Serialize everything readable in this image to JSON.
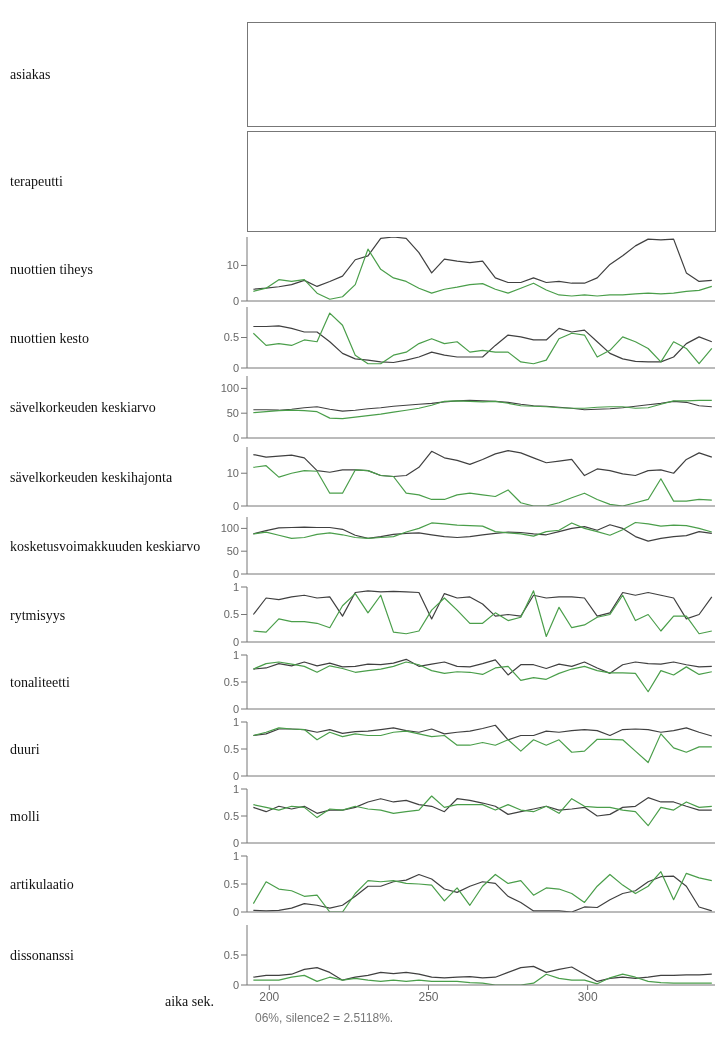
{
  "chart_data": [
    {
      "type": "other",
      "ylabel": "asiakas"
    },
    {
      "type": "other",
      "ylabel": "terapeutti"
    },
    {
      "type": "line",
      "ylabel": "nuottien tiheys",
      "xlim": [
        193,
        340
      ],
      "ylim": [
        0,
        18
      ],
      "yticks": [
        0,
        10
      ],
      "tick_labels": "y",
      "marker": "none",
      "x": [
        195,
        199,
        203,
        207,
        211,
        215,
        219,
        223,
        227,
        231,
        235,
        239,
        243,
        247,
        251,
        255,
        259,
        263,
        267,
        271,
        275,
        279,
        283,
        287,
        291,
        295,
        299,
        303,
        307,
        311,
        315,
        319,
        323,
        327,
        331,
        335,
        339
      ],
      "series": [
        {
          "color": "#404040",
          "values": [
            3.3,
            3.6,
            4,
            4.6,
            5.8,
            4.1,
            5.5,
            7,
            11.6,
            12.7,
            17.6,
            18,
            17.6,
            13.6,
            7.9,
            11.8,
            11.2,
            10.8,
            11.2,
            6.5,
            5.2,
            5.2,
            6.5,
            5.2,
            5.5,
            5,
            5,
            6.5,
            10.3,
            12.7,
            15.5,
            17.4,
            17.2,
            17.4,
            7.9,
            5.5,
            5.8
          ]
        },
        {
          "color": "#4a9e4a",
          "values": [
            2.7,
            3.6,
            6,
            5.5,
            6,
            2.2,
            0.5,
            1.2,
            4.6,
            14.6,
            8.9,
            6.5,
            5.5,
            3.6,
            2.2,
            3.3,
            3.9,
            4.6,
            4.9,
            3.3,
            2.2,
            3.6,
            5,
            3.1,
            1.7,
            1.4,
            1.7,
            1.4,
            1.7,
            1.7,
            2,
            2.2,
            2,
            2.2,
            2.7,
            3,
            4.1
          ]
        }
      ]
    },
    {
      "type": "line",
      "ylabel": "nuottien kesto",
      "xlim": [
        193,
        340
      ],
      "ylim": [
        0,
        1
      ],
      "yticks": [
        0,
        0.5
      ],
      "tick_labels": "y",
      "marker": "none",
      "x": [
        195,
        199,
        203,
        207,
        211,
        215,
        219,
        223,
        227,
        231,
        235,
        239,
        243,
        247,
        251,
        255,
        259,
        263,
        267,
        271,
        275,
        279,
        283,
        287,
        291,
        295,
        299,
        303,
        307,
        311,
        315,
        319,
        323,
        327,
        331,
        335,
        339
      ],
      "series": [
        {
          "color": "#404040",
          "values": [
            0.68,
            0.68,
            0.69,
            0.65,
            0.59,
            0.59,
            0.43,
            0.24,
            0.15,
            0.13,
            0.1,
            0.09,
            0.13,
            0.18,
            0.26,
            0.21,
            0.18,
            0.18,
            0.18,
            0.37,
            0.54,
            0.51,
            0.46,
            0.46,
            0.65,
            0.59,
            0.62,
            0.43,
            0.24,
            0.15,
            0.11,
            0.1,
            0.1,
            0.18,
            0.4,
            0.51,
            0.43
          ]
        },
        {
          "color": "#4a9e4a",
          "values": [
            0.57,
            0.37,
            0.4,
            0.37,
            0.46,
            0.43,
            0.9,
            0.7,
            0.21,
            0.07,
            0.07,
            0.21,
            0.26,
            0.4,
            0.48,
            0.4,
            0.43,
            0.26,
            0.29,
            0.26,
            0.26,
            0.1,
            0.07,
            0.13,
            0.48,
            0.57,
            0.54,
            0.18,
            0.29,
            0.51,
            0.43,
            0.32,
            0.1,
            0.43,
            0.32,
            0.07,
            0.32
          ]
        }
      ]
    },
    {
      "type": "line",
      "ylabel": "sävelkorkeuden keskiarvo",
      "xlim": [
        193,
        340
      ],
      "ylim": [
        0,
        125
      ],
      "yticks": [
        0,
        50,
        100
      ],
      "tick_labels": "y",
      "marker": "none",
      "x": [
        195,
        199,
        203,
        207,
        211,
        215,
        219,
        223,
        227,
        231,
        235,
        239,
        243,
        247,
        251,
        255,
        259,
        263,
        267,
        271,
        275,
        279,
        283,
        287,
        291,
        295,
        299,
        303,
        307,
        311,
        315,
        319,
        323,
        327,
        331,
        335,
        339
      ],
      "series": [
        {
          "color": "#404040",
          "values": [
            57,
            57,
            56,
            58,
            61,
            63,
            58,
            54,
            56,
            59,
            61,
            64,
            66,
            68,
            70,
            73,
            75,
            76,
            75,
            74,
            72,
            68,
            65,
            64,
            62,
            60,
            57,
            58,
            59,
            61,
            64,
            67,
            70,
            74,
            72,
            65,
            63
          ]
        },
        {
          "color": "#4a9e4a",
          "values": [
            51,
            53,
            55,
            56,
            55,
            53,
            40,
            39,
            42,
            45,
            48,
            52,
            56,
            60,
            66,
            74,
            75,
            74,
            73,
            74,
            70,
            65,
            64,
            63,
            61,
            60,
            60,
            62,
            63,
            63,
            60,
            61,
            68,
            75,
            75,
            76,
            76
          ]
        }
      ]
    },
    {
      "type": "line",
      "ylabel": "sävelkorkeuden keskihajonta",
      "xlim": [
        193,
        340
      ],
      "ylim": [
        0,
        18
      ],
      "yticks": [
        0,
        10
      ],
      "tick_labels": "y",
      "marker": "none",
      "x": [
        195,
        199,
        203,
        207,
        211,
        215,
        219,
        223,
        227,
        231,
        235,
        239,
        243,
        247,
        251,
        255,
        259,
        263,
        267,
        271,
        275,
        279,
        283,
        287,
        291,
        295,
        299,
        303,
        307,
        311,
        315,
        319,
        323,
        327,
        331,
        335,
        339
      ],
      "series": [
        {
          "color": "#404040",
          "values": [
            15.7,
            14.9,
            15.2,
            15.5,
            14.7,
            10.8,
            10.3,
            11,
            11,
            10.8,
            9.3,
            9,
            9.3,
            11.8,
            16.7,
            14.7,
            13.9,
            12.7,
            14.2,
            15.9,
            16.9,
            16.2,
            14.7,
            13.2,
            13.7,
            14.2,
            9.3,
            11.3,
            10.8,
            9.8,
            9.3,
            10.8,
            11,
            10,
            14.2,
            16.2,
            14.9
          ]
        },
        {
          "color": "#4a9e4a",
          "values": [
            11.8,
            12.3,
            8.8,
            10,
            10.8,
            10.6,
            3.9,
            3.9,
            11,
            10.8,
            9.3,
            9,
            3.9,
            3.4,
            2,
            2,
            3.4,
            3.9,
            3.4,
            2.9,
            4.9,
            1,
            0,
            0,
            1,
            2.5,
            3.9,
            2,
            0.5,
            0,
            1,
            2,
            8.3,
            1.5,
            1.5,
            2,
            1.8
          ]
        }
      ]
    },
    {
      "type": "line",
      "ylabel": "kosketusvoimakkuuden keskiarvo",
      "xlim": [
        193,
        340
      ],
      "ylim": [
        0,
        125
      ],
      "yticks": [
        0,
        50,
        100
      ],
      "tick_labels": "y",
      "marker": "none",
      "x": [
        195,
        199,
        203,
        207,
        211,
        215,
        219,
        223,
        227,
        231,
        235,
        239,
        243,
        247,
        251,
        255,
        259,
        263,
        267,
        271,
        275,
        279,
        283,
        287,
        291,
        295,
        299,
        303,
        307,
        311,
        315,
        319,
        323,
        327,
        331,
        335,
        339
      ],
      "series": [
        {
          "color": "#404040",
          "values": [
            88,
            95,
            101,
            102,
            103,
            102,
            102,
            98,
            85,
            78,
            82,
            87,
            89,
            90,
            86,
            82,
            80,
            82,
            86,
            89,
            92,
            91,
            88,
            86,
            93,
            100,
            104,
            96,
            108,
            100,
            82,
            72,
            78,
            82,
            84,
            93,
            89
          ]
        },
        {
          "color": "#4a9e4a",
          "values": [
            88,
            92,
            85,
            78,
            80,
            87,
            90,
            86,
            80,
            78,
            80,
            82,
            92,
            100,
            112,
            110,
            107,
            106,
            105,
            93,
            90,
            88,
            83,
            93,
            96,
            112,
            100,
            93,
            85,
            97,
            113,
            110,
            105,
            107,
            106,
            100,
            92
          ]
        }
      ]
    },
    {
      "type": "line",
      "ylabel": "rytmisyys",
      "xlim": [
        193,
        340
      ],
      "ylim": [
        0,
        1
      ],
      "yticks": [
        0,
        0.5,
        1
      ],
      "tick_labels": "y",
      "marker": "none",
      "x": [
        195,
        199,
        203,
        207,
        211,
        215,
        219,
        223,
        227,
        231,
        235,
        239,
        243,
        247,
        251,
        255,
        259,
        263,
        267,
        271,
        275,
        279,
        283,
        287,
        291,
        295,
        299,
        303,
        307,
        311,
        315,
        319,
        323,
        327,
        331,
        335,
        339
      ],
      "series": [
        {
          "color": "#404040",
          "values": [
            0.5,
            0.8,
            0.77,
            0.82,
            0.85,
            0.8,
            0.82,
            0.47,
            0.9,
            0.93,
            0.91,
            0.92,
            0.91,
            0.9,
            0.42,
            0.88,
            0.8,
            0.82,
            0.69,
            0.47,
            0.5,
            0.47,
            0.85,
            0.8,
            0.82,
            0.82,
            0.8,
            0.47,
            0.53,
            0.9,
            0.85,
            0.9,
            0.85,
            0.8,
            0.42,
            0.5,
            0.82
          ]
        },
        {
          "color": "#4a9e4a",
          "values": [
            0.2,
            0.18,
            0.42,
            0.37,
            0.37,
            0.34,
            0.26,
            0.66,
            0.88,
            0.53,
            0.85,
            0.18,
            0.15,
            0.2,
            0.58,
            0.8,
            0.58,
            0.34,
            0.34,
            0.53,
            0.39,
            0.45,
            0.93,
            0.1,
            0.63,
            0.26,
            0.31,
            0.45,
            0.5,
            0.85,
            0.39,
            0.5,
            0.2,
            0.47,
            0.47,
            0.15,
            0.2
          ]
        }
      ]
    },
    {
      "type": "line",
      "ylabel": "tonaliteetti",
      "xlim": [
        193,
        340
      ],
      "ylim": [
        0,
        1
      ],
      "yticks": [
        0,
        0.5,
        1
      ],
      "tick_labels": "y",
      "marker": "none",
      "x": [
        195,
        199,
        203,
        207,
        211,
        215,
        219,
        223,
        227,
        231,
        235,
        239,
        243,
        247,
        251,
        255,
        259,
        263,
        267,
        271,
        275,
        279,
        283,
        287,
        291,
        295,
        299,
        303,
        307,
        311,
        315,
        319,
        323,
        327,
        331,
        335,
        339
      ],
      "series": [
        {
          "color": "#404040",
          "values": [
            0.74,
            0.76,
            0.84,
            0.8,
            0.87,
            0.8,
            0.85,
            0.78,
            0.79,
            0.83,
            0.82,
            0.85,
            0.92,
            0.79,
            0.83,
            0.87,
            0.79,
            0.78,
            0.84,
            0.91,
            0.63,
            0.82,
            0.82,
            0.75,
            0.83,
            0.79,
            0.87,
            0.76,
            0.66,
            0.82,
            0.87,
            0.84,
            0.83,
            0.87,
            0.82,
            0.78,
            0.79
          ]
        },
        {
          "color": "#4a9e4a",
          "values": [
            0.74,
            0.84,
            0.87,
            0.83,
            0.79,
            0.68,
            0.8,
            0.75,
            0.68,
            0.71,
            0.74,
            0.79,
            0.87,
            0.82,
            0.71,
            0.66,
            0.69,
            0.68,
            0.64,
            0.76,
            0.79,
            0.53,
            0.58,
            0.55,
            0.66,
            0.74,
            0.79,
            0.71,
            0.67,
            0.67,
            0.66,
            0.32,
            0.71,
            0.63,
            0.78,
            0.64,
            0.69
          ]
        }
      ]
    },
    {
      "type": "line",
      "ylabel": "duuri",
      "xlim": [
        193,
        340
      ],
      "ylim": [
        0,
        1
      ],
      "yticks": [
        0,
        0.5,
        1
      ],
      "tick_labels": "y",
      "marker": "none",
      "x": [
        195,
        199,
        203,
        207,
        211,
        215,
        219,
        223,
        227,
        231,
        235,
        239,
        243,
        247,
        251,
        255,
        259,
        263,
        267,
        271,
        275,
        279,
        283,
        287,
        291,
        295,
        299,
        303,
        307,
        311,
        315,
        319,
        323,
        327,
        331,
        335,
        339
      ],
      "series": [
        {
          "color": "#404040",
          "values": [
            0.75,
            0.78,
            0.87,
            0.87,
            0.86,
            0.81,
            0.86,
            0.79,
            0.82,
            0.83,
            0.86,
            0.89,
            0.84,
            0.81,
            0.87,
            0.78,
            0.81,
            0.83,
            0.88,
            0.94,
            0.67,
            0.75,
            0.75,
            0.83,
            0.81,
            0.84,
            0.86,
            0.84,
            0.75,
            0.86,
            0.87,
            0.86,
            0.81,
            0.84,
            0.89,
            0.81,
            0.74
          ]
        },
        {
          "color": "#4a9e4a",
          "values": [
            0.75,
            0.81,
            0.89,
            0.87,
            0.86,
            0.67,
            0.81,
            0.73,
            0.78,
            0.75,
            0.75,
            0.81,
            0.83,
            0.78,
            0.73,
            0.75,
            0.57,
            0.57,
            0.62,
            0.57,
            0.67,
            0.46,
            0.67,
            0.57,
            0.67,
            0.44,
            0.46,
            0.68,
            0.68,
            0.67,
            0.46,
            0.25,
            0.78,
            0.52,
            0.44,
            0.54,
            0.54
          ]
        }
      ]
    },
    {
      "type": "line",
      "ylabel": "molli",
      "xlim": [
        193,
        340
      ],
      "ylim": [
        0,
        1
      ],
      "yticks": [
        0,
        0.5,
        1
      ],
      "tick_labels": "y",
      "marker": "none",
      "x": [
        195,
        199,
        203,
        207,
        211,
        215,
        219,
        223,
        227,
        231,
        235,
        239,
        243,
        247,
        251,
        255,
        259,
        263,
        267,
        271,
        275,
        279,
        283,
        287,
        291,
        295,
        299,
        303,
        307,
        311,
        315,
        319,
        323,
        327,
        331,
        335,
        339
      ],
      "series": [
        {
          "color": "#404040",
          "values": [
            0.66,
            0.58,
            0.68,
            0.63,
            0.68,
            0.55,
            0.61,
            0.61,
            0.66,
            0.76,
            0.82,
            0.76,
            0.79,
            0.71,
            0.68,
            0.58,
            0.82,
            0.79,
            0.74,
            0.68,
            0.53,
            0.58,
            0.63,
            0.68,
            0.61,
            0.63,
            0.66,
            0.5,
            0.53,
            0.66,
            0.68,
            0.84,
            0.76,
            0.76,
            0.68,
            0.61,
            0.61
          ]
        },
        {
          "color": "#4a9e4a",
          "values": [
            0.71,
            0.66,
            0.61,
            0.68,
            0.66,
            0.47,
            0.63,
            0.61,
            0.68,
            0.63,
            0.61,
            0.55,
            0.58,
            0.61,
            0.87,
            0.66,
            0.71,
            0.71,
            0.71,
            0.61,
            0.71,
            0.61,
            0.58,
            0.68,
            0.55,
            0.82,
            0.68,
            0.66,
            0.66,
            0.61,
            0.58,
            0.32,
            0.66,
            0.61,
            0.76,
            0.66,
            0.68
          ]
        }
      ]
    },
    {
      "type": "line",
      "ylabel": "artikulaatio",
      "xlim": [
        193,
        340
      ],
      "ylim": [
        0,
        1
      ],
      "yticks": [
        0,
        0.5,
        1
      ],
      "tick_labels": "y",
      "marker": "none",
      "x": [
        195,
        199,
        203,
        207,
        211,
        215,
        219,
        223,
        227,
        231,
        235,
        239,
        243,
        247,
        251,
        255,
        259,
        263,
        267,
        271,
        275,
        279,
        283,
        287,
        291,
        295,
        299,
        303,
        307,
        311,
        315,
        319,
        323,
        327,
        331,
        335,
        339
      ],
      "series": [
        {
          "color": "#404040",
          "values": [
            0.03,
            0.02,
            0.03,
            0.07,
            0.15,
            0.12,
            0.07,
            0.12,
            0.28,
            0.46,
            0.46,
            0.54,
            0.57,
            0.67,
            0.59,
            0.41,
            0.35,
            0.46,
            0.54,
            0.51,
            0.28,
            0.17,
            0.02,
            0.02,
            0.02,
            0,
            0.09,
            0.08,
            0.22,
            0.33,
            0.38,
            0.54,
            0.63,
            0.64,
            0.46,
            0.09,
            0.02
          ]
        },
        {
          "color": "#4a9e4a",
          "values": [
            0.15,
            0.54,
            0.41,
            0.38,
            0.28,
            0.3,
            0,
            0,
            0.33,
            0.56,
            0.54,
            0.56,
            0.51,
            0.5,
            0.48,
            0.2,
            0.43,
            0.12,
            0.46,
            0.67,
            0.51,
            0.56,
            0.3,
            0.43,
            0.41,
            0.33,
            0.17,
            0.46,
            0.67,
            0.48,
            0.33,
            0.46,
            0.72,
            0.22,
            0.69,
            0.61,
            0.56
          ]
        }
      ]
    },
    {
      "type": "line",
      "ylabel": "dissonanssi",
      "xlabel": "aika sek.",
      "xlim": [
        193,
        340
      ],
      "xticks": [
        200,
        250,
        300
      ],
      "ylim": [
        0,
        1
      ],
      "yticks": [
        0,
        0.5
      ],
      "marker": "none",
      "annotations": [
        "06%, silence2 = 2.5118%."
      ],
      "x": [
        195,
        199,
        203,
        207,
        211,
        215,
        219,
        223,
        227,
        231,
        235,
        239,
        243,
        247,
        251,
        255,
        259,
        263,
        267,
        271,
        275,
        279,
        283,
        287,
        291,
        295,
        299,
        303,
        307,
        311,
        315,
        319,
        323,
        327,
        331,
        335,
        339
      ],
      "series": [
        {
          "color": "#404040",
          "values": [
            0.13,
            0.16,
            0.16,
            0.18,
            0.26,
            0.29,
            0.21,
            0.08,
            0.13,
            0.16,
            0.21,
            0.19,
            0.21,
            0.18,
            0.13,
            0.12,
            0.13,
            0.14,
            0.12,
            0.13,
            0.21,
            0.29,
            0.31,
            0.21,
            0.26,
            0.3,
            0.18,
            0.06,
            0.11,
            0.13,
            0.11,
            0.13,
            0.16,
            0.16,
            0.17,
            0.17,
            0.18
          ]
        },
        {
          "color": "#4a9e4a",
          "values": [
            0.08,
            0.08,
            0.08,
            0.13,
            0.16,
            0.06,
            0.13,
            0.08,
            0.11,
            0.08,
            0.06,
            0.08,
            0.06,
            0.08,
            0.06,
            0.06,
            0.06,
            0.04,
            0.03,
            0,
            0,
            0,
            0.03,
            0.18,
            0.11,
            0.08,
            0.08,
            0.02,
            0.12,
            0.18,
            0.13,
            0.06,
            0.04,
            0.03,
            0.03,
            0.03,
            0.03
          ]
        }
      ]
    }
  ]
}
